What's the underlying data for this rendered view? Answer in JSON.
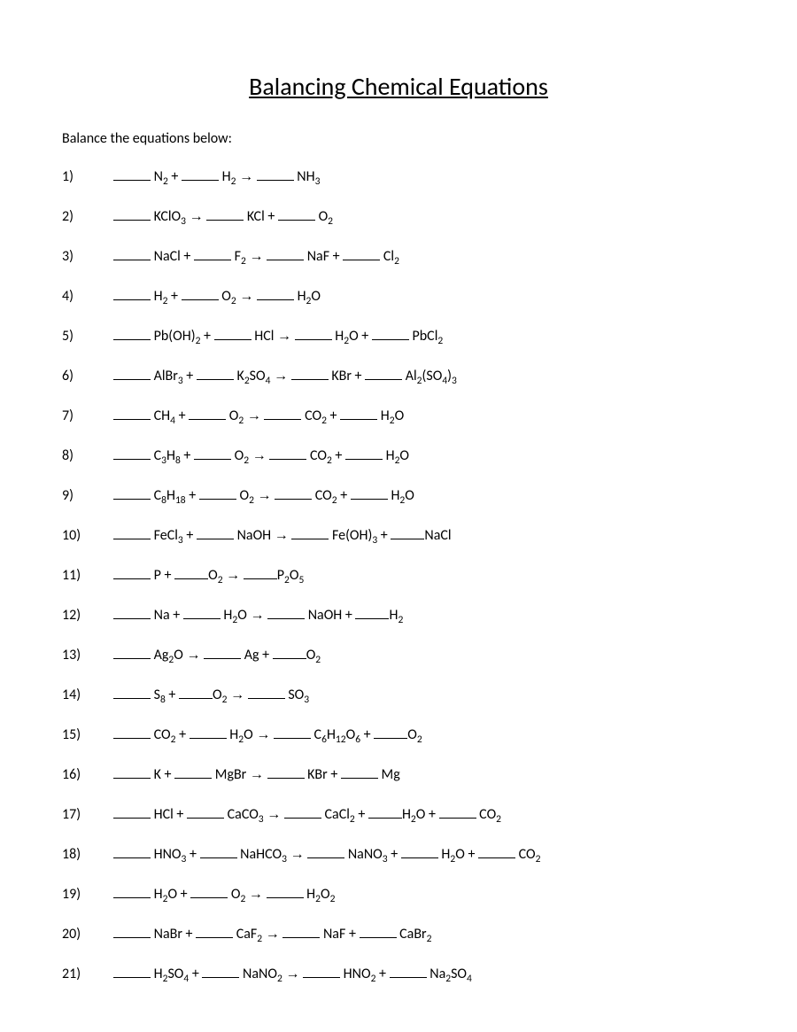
{
  "title": "Balancing Chemical Equations",
  "instructions": "Balance the equations below:",
  "equations": [
    {
      "num": "1)",
      "html": "<span class='blank'></span> N<sub>2</sub> + <span class='blank'></span> H<sub>2</sub> <span class='arrow'>→</span> <span class='blank'></span> NH<sub>3</sub>"
    },
    {
      "num": "2)",
      "html": "<span class='blank'></span> KClO<sub>3</sub> <span class='arrow'>→</span> <span class='blank'></span> KCl + <span class='blank'></span> O<sub>2</sub>"
    },
    {
      "num": "3)",
      "html": "<span class='blank'></span> NaCl + <span class='blank'></span> F<sub>2</sub> <span class='arrow'>→</span> <span class='blank'></span> NaF + <span class='blank'></span> Cl<sub>2</sub>"
    },
    {
      "num": "4)",
      "html": "<span class='blank'></span> H<sub>2</sub> + <span class='blank'></span> O<sub>2</sub> <span class='arrow'>→</span> <span class='blank'></span> H<sub>2</sub>O"
    },
    {
      "num": "5)",
      "html": "<span class='blank'></span> Pb(OH)<sub>2</sub> + <span class='blank'></span> HCl <span class='arrow'>→</span> <span class='blank'></span> H<sub>2</sub>O + <span class='blank'></span> PbCl<sub>2</sub>"
    },
    {
      "num": "6)",
      "html": "<span class='blank'></span> AlBr<sub>3</sub> + <span class='blank'></span> K<sub>2</sub>SO<sub>4</sub> <span class='arrow'>→</span> <span class='blank'></span> KBr + <span class='blank'></span> Al<sub>2</sub>(SO<sub>4</sub>)<sub>3</sub>"
    },
    {
      "num": "7)",
      "html": "<span class='blank'></span> CH<sub>4</sub> + <span class='blank'></span> O<sub>2</sub> <span class='arrow'>→</span> <span class='blank'></span> CO<sub>2</sub> + <span class='blank'></span> H<sub>2</sub>O"
    },
    {
      "num": "8)",
      "html": "<span class='blank'></span> C<sub>3</sub>H<sub>8</sub> + <span class='blank'></span> O<sub>2</sub> <span class='arrow'>→</span> <span class='blank'></span> CO<sub>2</sub> + <span class='blank'></span> H<sub>2</sub>O"
    },
    {
      "num": "9)",
      "html": "<span class='blank'></span> C<sub>8</sub>H<sub>18</sub> + <span class='blank'></span> O<sub>2</sub> <span class='arrow'>→</span> <span class='blank'></span> CO<sub>2</sub> + <span class='blank'></span> H<sub>2</sub>O"
    },
    {
      "num": "10)",
      "html": "<span class='blank'></span> FeCl<sub>3</sub> + <span class='blank'></span> NaOH <span class='arrow'>→</span> <span class='blank'></span> Fe(OH)<sub>3</sub> + <span class='blank-tight'></span>NaCl"
    },
    {
      "num": "11)",
      "html": "<span class='blank'></span> P + <span class='blank-tight'></span>O<sub>2</sub> <span class='arrow'>→</span> <span class='blank-tight'></span>P<sub>2</sub>O<sub>5</sub>"
    },
    {
      "num": "12)",
      "html": "<span class='blank'></span> Na + <span class='blank'></span> H<sub>2</sub>O <span class='arrow'>→</span> <span class='blank'></span> NaOH + <span class='blank-tight'></span>H<sub>2</sub>"
    },
    {
      "num": "13)",
      "html": "<span class='blank'></span> Ag<sub>2</sub>O <span class='arrow'>→</span> <span class='blank'></span> Ag + <span class='blank-tight'></span>O<sub>2</sub>"
    },
    {
      "num": "14)",
      "html": "<span class='blank'></span> S<sub>8</sub> + <span class='blank-tight'></span>O<sub>2</sub> <span class='arrow'>→</span> <span class='blank'></span> SO<sub>3</sub>"
    },
    {
      "num": "15)",
      "html": "<span class='blank'></span> CO<sub>2</sub> + <span class='blank'></span> H<sub>2</sub>O <span class='arrow'>→</span> <span class='blank'></span> C<sub>6</sub>H<sub>12</sub>O<sub>6</sub> + <span class='blank-tight'></span>O<sub>2</sub>"
    },
    {
      "num": "16)",
      "html": "<span class='blank'></span> K + <span class='blank'></span> MgBr <span class='arrow'>→</span> <span class='blank'></span> KBr + <span class='blank'></span> Mg"
    },
    {
      "num": "17)",
      "html": "<span class='blank'></span> HCl + <span class='blank'></span> CaCO<sub>3</sub> <span class='arrow'>→</span> <span class='blank'></span> CaCl<sub>2</sub> + <span class='blank-tight'></span>H<sub>2</sub>O + <span class='blank'></span> CO<sub>2</sub>"
    },
    {
      "num": "18)",
      "html": "<span class='blank'></span> HNO<sub>3</sub> + <span class='blank'></span> NaHCO<sub>3</sub> <span class='arrow'>→</span> <span class='blank'></span> NaNO<sub>3</sub> + <span class='blank'></span> H<sub>2</sub>O + <span class='blank'></span> CO<sub>2</sub>"
    },
    {
      "num": "19)",
      "html": "<span class='blank'></span> H<sub>2</sub>O + <span class='blank'></span> O<sub>2</sub> <span class='arrow'>→</span> <span class='blank'></span> H<sub>2</sub>O<sub>2</sub>"
    },
    {
      "num": "20)",
      "html": "<span class='blank'></span> NaBr + <span class='blank'></span> CaF<sub>2</sub> <span class='arrow'>→</span> <span class='blank'></span> NaF + <span class='blank'></span> CaBr<sub>2</sub>"
    },
    {
      "num": "21)",
      "html": "<span class='blank'></span> H<sub>2</sub>SO<sub>4</sub> + <span class='blank'></span> NaNO<sub>2</sub> <span class='arrow'>→</span> <span class='blank'></span> HNO<sub>2</sub> + <span class='blank'></span> Na<sub>2</sub>SO<sub>4</sub>"
    }
  ]
}
